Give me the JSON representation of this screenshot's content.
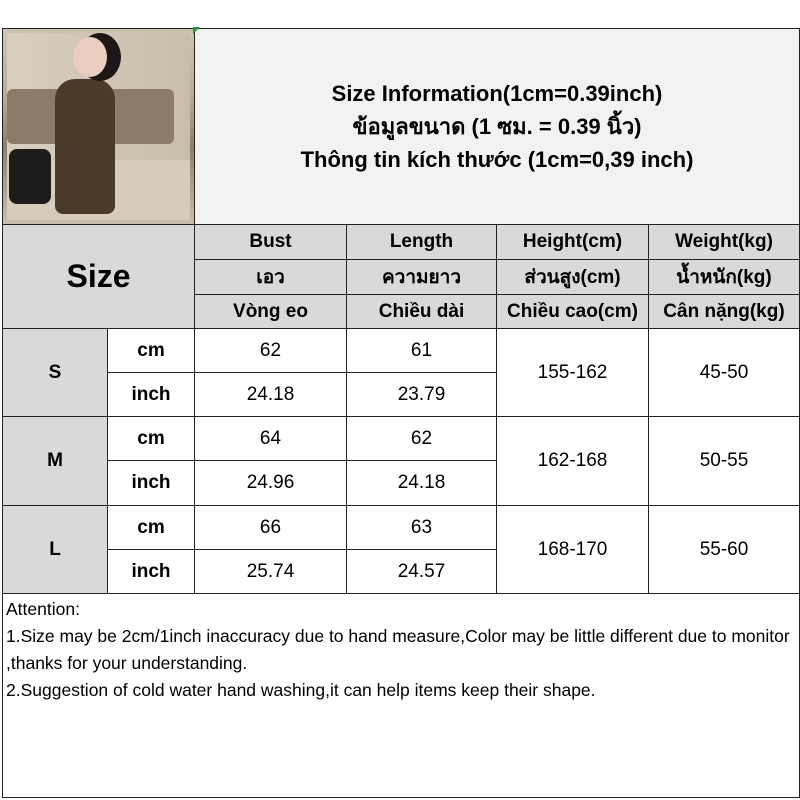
{
  "title_lines": [
    "Size Information(1cm=0.39inch)",
    "ข้อมูลขนาด (1 ซม. = 0.39 นิ้ว)",
    "Thông tin kích thước (1cm=0,39 inch)"
  ],
  "size_header": "Size",
  "columns": [
    {
      "en": "Bust",
      "th": "เอว",
      "vi": "Vòng eo"
    },
    {
      "en": "Length",
      "th": "ความยาว",
      "vi": "Chiều dài"
    },
    {
      "en": "Height(cm)",
      "th": "ส่วนสูง(cm)",
      "vi": "Chiều cao(cm)"
    },
    {
      "en": "Weight(kg)",
      "th": "น้ำหนัก(kg)",
      "vi": "Cân nặng(kg)"
    }
  ],
  "units": {
    "cm": "cm",
    "inch": "inch"
  },
  "rows": [
    {
      "size": "S",
      "cm": [
        "62",
        "61"
      ],
      "inch": [
        "24.18",
        "23.79"
      ],
      "height": "155-162",
      "weight": "45-50"
    },
    {
      "size": "M",
      "cm": [
        "64",
        "62"
      ],
      "inch": [
        "24.96",
        "24.18"
      ],
      "height": "162-168",
      "weight": "50-55"
    },
    {
      "size": "L",
      "cm": [
        "66",
        "63"
      ],
      "inch": [
        "25.74",
        "24.57"
      ],
      "height": "168-170",
      "weight": "55-60"
    }
  ],
  "attention": [
    "Attention:",
    "1.Size may be 2cm/1inch inaccuracy due to hand measure,Color may be little different due to monitor ,thanks for your understanding.",
    "2.Suggestion of cold water hand washing,it can help items keep their shape."
  ]
}
